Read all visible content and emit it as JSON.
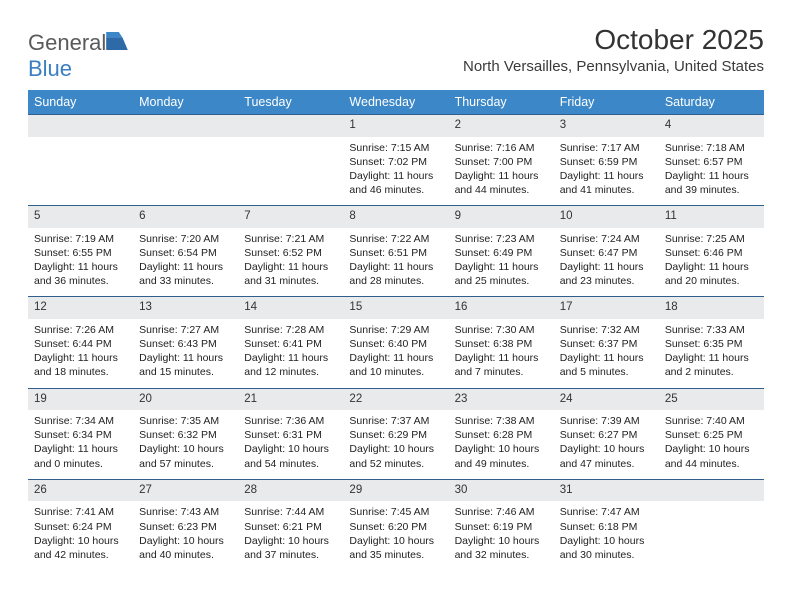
{
  "logo": {
    "text1": "General",
    "text2": "Blue",
    "icon_color": "#2f6aa8"
  },
  "title": "October 2025",
  "location": "North Versailles, Pennsylvania, United States",
  "colors": {
    "header_bg": "#3b87c8",
    "header_fg": "#ffffff",
    "border": "#2f5f8a",
    "num_bg": "#e9eaec"
  },
  "fonts": {
    "title_size": 28,
    "location_size": 15,
    "th_size": 12.5,
    "cell_size": 10.5
  },
  "daynames": [
    "Sunday",
    "Monday",
    "Tuesday",
    "Wednesday",
    "Thursday",
    "Friday",
    "Saturday"
  ],
  "weeks": [
    {
      "nums": [
        "",
        "",
        "",
        "1",
        "2",
        "3",
        "4"
      ],
      "cells": [
        {},
        {},
        {},
        {
          "sunrise": "Sunrise: 7:15 AM",
          "sunset": "Sunset: 7:02 PM",
          "daylight": "Daylight: 11 hours and 46 minutes."
        },
        {
          "sunrise": "Sunrise: 7:16 AM",
          "sunset": "Sunset: 7:00 PM",
          "daylight": "Daylight: 11 hours and 44 minutes."
        },
        {
          "sunrise": "Sunrise: 7:17 AM",
          "sunset": "Sunset: 6:59 PM",
          "daylight": "Daylight: 11 hours and 41 minutes."
        },
        {
          "sunrise": "Sunrise: 7:18 AM",
          "sunset": "Sunset: 6:57 PM",
          "daylight": "Daylight: 11 hours and 39 minutes."
        }
      ]
    },
    {
      "nums": [
        "5",
        "6",
        "7",
        "8",
        "9",
        "10",
        "11"
      ],
      "cells": [
        {
          "sunrise": "Sunrise: 7:19 AM",
          "sunset": "Sunset: 6:55 PM",
          "daylight": "Daylight: 11 hours and 36 minutes."
        },
        {
          "sunrise": "Sunrise: 7:20 AM",
          "sunset": "Sunset: 6:54 PM",
          "daylight": "Daylight: 11 hours and 33 minutes."
        },
        {
          "sunrise": "Sunrise: 7:21 AM",
          "sunset": "Sunset: 6:52 PM",
          "daylight": "Daylight: 11 hours and 31 minutes."
        },
        {
          "sunrise": "Sunrise: 7:22 AM",
          "sunset": "Sunset: 6:51 PM",
          "daylight": "Daylight: 11 hours and 28 minutes."
        },
        {
          "sunrise": "Sunrise: 7:23 AM",
          "sunset": "Sunset: 6:49 PM",
          "daylight": "Daylight: 11 hours and 25 minutes."
        },
        {
          "sunrise": "Sunrise: 7:24 AM",
          "sunset": "Sunset: 6:47 PM",
          "daylight": "Daylight: 11 hours and 23 minutes."
        },
        {
          "sunrise": "Sunrise: 7:25 AM",
          "sunset": "Sunset: 6:46 PM",
          "daylight": "Daylight: 11 hours and 20 minutes."
        }
      ]
    },
    {
      "nums": [
        "12",
        "13",
        "14",
        "15",
        "16",
        "17",
        "18"
      ],
      "cells": [
        {
          "sunrise": "Sunrise: 7:26 AM",
          "sunset": "Sunset: 6:44 PM",
          "daylight": "Daylight: 11 hours and 18 minutes."
        },
        {
          "sunrise": "Sunrise: 7:27 AM",
          "sunset": "Sunset: 6:43 PM",
          "daylight": "Daylight: 11 hours and 15 minutes."
        },
        {
          "sunrise": "Sunrise: 7:28 AM",
          "sunset": "Sunset: 6:41 PM",
          "daylight": "Daylight: 11 hours and 12 minutes."
        },
        {
          "sunrise": "Sunrise: 7:29 AM",
          "sunset": "Sunset: 6:40 PM",
          "daylight": "Daylight: 11 hours and 10 minutes."
        },
        {
          "sunrise": "Sunrise: 7:30 AM",
          "sunset": "Sunset: 6:38 PM",
          "daylight": "Daylight: 11 hours and 7 minutes."
        },
        {
          "sunrise": "Sunrise: 7:32 AM",
          "sunset": "Sunset: 6:37 PM",
          "daylight": "Daylight: 11 hours and 5 minutes."
        },
        {
          "sunrise": "Sunrise: 7:33 AM",
          "sunset": "Sunset: 6:35 PM",
          "daylight": "Daylight: 11 hours and 2 minutes."
        }
      ]
    },
    {
      "nums": [
        "19",
        "20",
        "21",
        "22",
        "23",
        "24",
        "25"
      ],
      "cells": [
        {
          "sunrise": "Sunrise: 7:34 AM",
          "sunset": "Sunset: 6:34 PM",
          "daylight": "Daylight: 11 hours and 0 minutes."
        },
        {
          "sunrise": "Sunrise: 7:35 AM",
          "sunset": "Sunset: 6:32 PM",
          "daylight": "Daylight: 10 hours and 57 minutes."
        },
        {
          "sunrise": "Sunrise: 7:36 AM",
          "sunset": "Sunset: 6:31 PM",
          "daylight": "Daylight: 10 hours and 54 minutes."
        },
        {
          "sunrise": "Sunrise: 7:37 AM",
          "sunset": "Sunset: 6:29 PM",
          "daylight": "Daylight: 10 hours and 52 minutes."
        },
        {
          "sunrise": "Sunrise: 7:38 AM",
          "sunset": "Sunset: 6:28 PM",
          "daylight": "Daylight: 10 hours and 49 minutes."
        },
        {
          "sunrise": "Sunrise: 7:39 AM",
          "sunset": "Sunset: 6:27 PM",
          "daylight": "Daylight: 10 hours and 47 minutes."
        },
        {
          "sunrise": "Sunrise: 7:40 AM",
          "sunset": "Sunset: 6:25 PM",
          "daylight": "Daylight: 10 hours and 44 minutes."
        }
      ]
    },
    {
      "nums": [
        "26",
        "27",
        "28",
        "29",
        "30",
        "31",
        ""
      ],
      "cells": [
        {
          "sunrise": "Sunrise: 7:41 AM",
          "sunset": "Sunset: 6:24 PM",
          "daylight": "Daylight: 10 hours and 42 minutes."
        },
        {
          "sunrise": "Sunrise: 7:43 AM",
          "sunset": "Sunset: 6:23 PM",
          "daylight": "Daylight: 10 hours and 40 minutes."
        },
        {
          "sunrise": "Sunrise: 7:44 AM",
          "sunset": "Sunset: 6:21 PM",
          "daylight": "Daylight: 10 hours and 37 minutes."
        },
        {
          "sunrise": "Sunrise: 7:45 AM",
          "sunset": "Sunset: 6:20 PM",
          "daylight": "Daylight: 10 hours and 35 minutes."
        },
        {
          "sunrise": "Sunrise: 7:46 AM",
          "sunset": "Sunset: 6:19 PM",
          "daylight": "Daylight: 10 hours and 32 minutes."
        },
        {
          "sunrise": "Sunrise: 7:47 AM",
          "sunset": "Sunset: 6:18 PM",
          "daylight": "Daylight: 10 hours and 30 minutes."
        },
        {}
      ]
    }
  ]
}
